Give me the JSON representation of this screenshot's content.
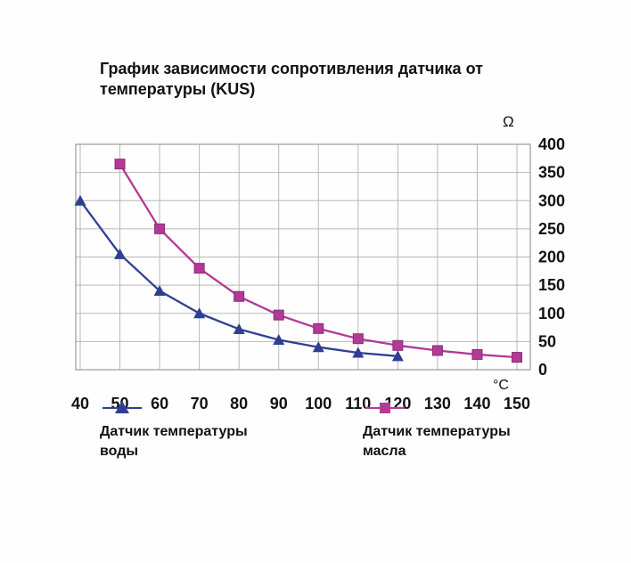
{
  "title": "График зависимости сопротивления датчика от температуры (KUS)",
  "chart_data": {
    "type": "line",
    "title": "График зависимости сопротивления датчика от температуры (KUS)",
    "xlabel": "°C",
    "ylabel": "Ω",
    "xlim": [
      40,
      150
    ],
    "ylim": [
      0,
      400
    ],
    "x_ticks": [
      40,
      50,
      60,
      70,
      80,
      90,
      100,
      110,
      120,
      130,
      140,
      150
    ],
    "y_ticks": [
      0,
      50,
      100,
      150,
      200,
      250,
      300,
      350,
      400
    ],
    "grid": true,
    "legend_position": "bottom",
    "colors": {
      "grid": "#b8b8b8",
      "plot_border": "#9a9a9a",
      "text": "#111111"
    },
    "series": [
      {
        "name": "Датчик температуры воды",
        "marker": "triangle",
        "color": "#2e3f93",
        "x": [
          40,
          50,
          60,
          70,
          80,
          90,
          100,
          110,
          120
        ],
        "values": [
          300,
          205,
          140,
          100,
          72,
          53,
          40,
          30,
          24
        ]
      },
      {
        "name": "Датчик температуры масла",
        "marker": "square",
        "color": "#b23a96",
        "x": [
          50,
          60,
          70,
          80,
          90,
          100,
          110,
          120,
          130,
          140,
          150
        ],
        "values": [
          365,
          250,
          180,
          130,
          97,
          73,
          55,
          43,
          34,
          27,
          22
        ]
      }
    ]
  }
}
